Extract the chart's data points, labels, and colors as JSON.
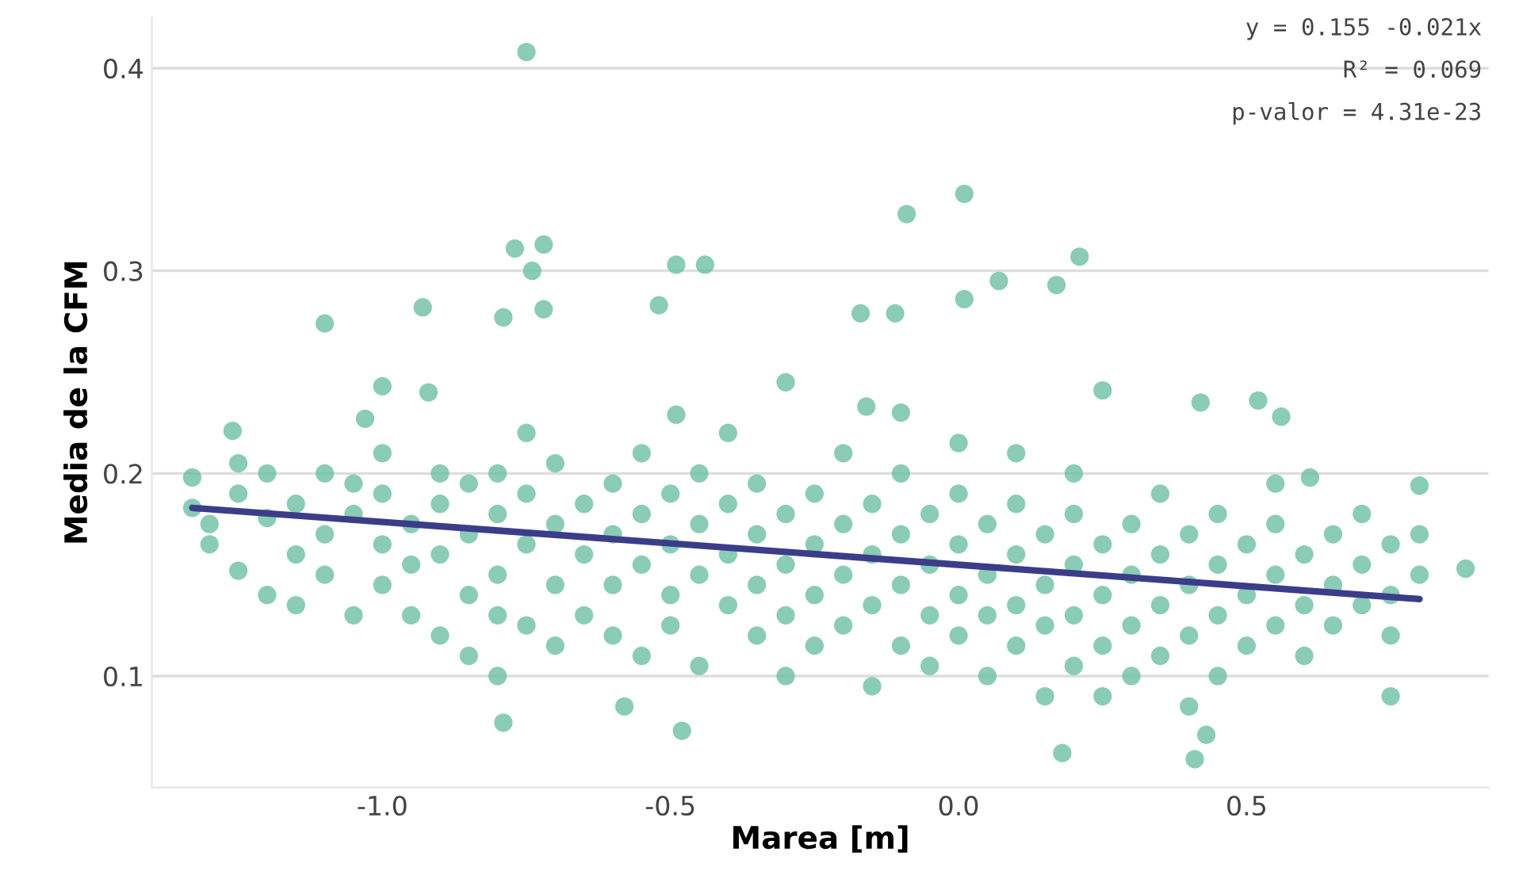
{
  "chart_data": {
    "type": "scatter",
    "xlabel": "Marea [m]",
    "ylabel": "Media de la CFM",
    "xticks": [
      {
        "value": -1.0,
        "label": "-1.0"
      },
      {
        "value": -0.5,
        "label": "-0.5"
      },
      {
        "value": 0.0,
        "label": "0.0"
      },
      {
        "value": 0.5,
        "label": "0.5"
      }
    ],
    "xlim": [
      -1.4,
      0.92
    ],
    "ylim": [
      0.045,
      0.425
    ],
    "yticks": [
      0.1,
      0.2,
      0.3,
      0.4
    ],
    "grid": "y",
    "annotations": [
      "y = 0.155 -0.021x",
      "R² = 0.069",
      "p-valor = 4.31e-23"
    ],
    "series": [
      {
        "color": "#6dbfa2",
        "marker": "circle",
        "x": [
          -0.75,
          -0.77,
          -0.72,
          -0.74,
          -0.72,
          -0.79,
          0.01,
          -0.09,
          0.21,
          0.07,
          0.17,
          0.01,
          -0.44,
          -0.49,
          -0.52,
          -0.93,
          -1.1,
          -1.33,
          -1.33,
          -0.79,
          -0.48,
          -0.58,
          0.18,
          0.41,
          0.75,
          0.43,
          -1.26,
          -1.0,
          -0.92,
          -1.03,
          -0.49,
          -0.3,
          -0.16,
          -0.17,
          -0.11,
          0.25,
          0.52,
          0.56,
          0.42,
          0.61,
          0.8,
          0.88,
          -1.3,
          -1.3,
          -1.25,
          -1.25,
          -1.25,
          -1.2,
          -1.2,
          -1.2,
          -1.15,
          -1.15,
          -1.15,
          -1.1,
          -1.1,
          -1.1,
          -1.05,
          -1.05,
          -1.05,
          -1.0,
          -1.0,
          -1.0,
          -1.0,
          -0.95,
          -0.95,
          -0.95,
          -0.9,
          -0.9,
          -0.9,
          -0.9,
          -0.85,
          -0.85,
          -0.85,
          -0.85,
          -0.8,
          -0.8,
          -0.8,
          -0.8,
          -0.8,
          -0.75,
          -0.75,
          -0.75,
          -0.75,
          -0.7,
          -0.7,
          -0.7,
          -0.7,
          -0.65,
          -0.65,
          -0.65,
          -0.6,
          -0.6,
          -0.6,
          -0.6,
          -0.55,
          -0.55,
          -0.55,
          -0.55,
          -0.5,
          -0.5,
          -0.5,
          -0.5,
          -0.45,
          -0.45,
          -0.45,
          -0.45,
          -0.4,
          -0.4,
          -0.4,
          -0.4,
          -0.35,
          -0.35,
          -0.35,
          -0.35,
          -0.3,
          -0.3,
          -0.3,
          -0.3,
          -0.25,
          -0.25,
          -0.25,
          -0.25,
          -0.2,
          -0.2,
          -0.2,
          -0.2,
          -0.15,
          -0.15,
          -0.15,
          -0.15,
          -0.1,
          -0.1,
          -0.1,
          -0.1,
          -0.1,
          -0.05,
          -0.05,
          -0.05,
          -0.05,
          0.0,
          0.0,
          0.0,
          0.0,
          0.0,
          0.05,
          0.05,
          0.05,
          0.05,
          0.1,
          0.1,
          0.1,
          0.1,
          0.1,
          0.15,
          0.15,
          0.15,
          0.15,
          0.2,
          0.2,
          0.2,
          0.2,
          0.2,
          0.25,
          0.25,
          0.25,
          0.25,
          0.3,
          0.3,
          0.3,
          0.3,
          0.35,
          0.35,
          0.35,
          0.35,
          0.4,
          0.4,
          0.4,
          0.4,
          0.45,
          0.45,
          0.45,
          0.45,
          0.5,
          0.5,
          0.5,
          0.55,
          0.55,
          0.55,
          0.55,
          0.6,
          0.6,
          0.6,
          0.65,
          0.65,
          0.65,
          0.7,
          0.7,
          0.7,
          0.75,
          0.75,
          0.75,
          0.8,
          0.8
        ],
        "values": [
          0.408,
          0.311,
          0.313,
          0.3,
          0.281,
          0.277,
          0.338,
          0.328,
          0.307,
          0.295,
          0.293,
          0.286,
          0.303,
          0.303,
          0.283,
          0.282,
          0.274,
          0.198,
          0.183,
          0.077,
          0.073,
          0.085,
          0.062,
          0.059,
          0.09,
          0.071,
          0.221,
          0.243,
          0.24,
          0.227,
          0.229,
          0.245,
          0.233,
          0.279,
          0.279,
          0.241,
          0.236,
          0.228,
          0.235,
          0.198,
          0.194,
          0.153,
          0.175,
          0.165,
          0.19,
          0.152,
          0.205,
          0.178,
          0.14,
          0.2,
          0.185,
          0.16,
          0.135,
          0.17,
          0.2,
          0.15,
          0.18,
          0.13,
          0.195,
          0.165,
          0.145,
          0.19,
          0.21,
          0.175,
          0.13,
          0.155,
          0.185,
          0.12,
          0.16,
          0.2,
          0.17,
          0.14,
          0.11,
          0.195,
          0.18,
          0.2,
          0.15,
          0.13,
          0.1,
          0.165,
          0.19,
          0.125,
          0.22,
          0.175,
          0.145,
          0.205,
          0.115,
          0.16,
          0.185,
          0.13,
          0.17,
          0.145,
          0.195,
          0.12,
          0.155,
          0.18,
          0.11,
          0.21,
          0.165,
          0.14,
          0.19,
          0.125,
          0.15,
          0.175,
          0.105,
          0.2,
          0.16,
          0.135,
          0.185,
          0.22,
          0.145,
          0.17,
          0.12,
          0.195,
          0.155,
          0.18,
          0.1,
          0.13,
          0.165,
          0.14,
          0.19,
          0.115,
          0.15,
          0.175,
          0.125,
          0.21,
          0.16,
          0.135,
          0.185,
          0.095,
          0.145,
          0.17,
          0.115,
          0.2,
          0.23,
          0.155,
          0.13,
          0.18,
          0.105,
          0.165,
          0.14,
          0.19,
          0.12,
          0.215,
          0.15,
          0.175,
          0.1,
          0.13,
          0.16,
          0.135,
          0.185,
          0.115,
          0.21,
          0.145,
          0.17,
          0.09,
          0.125,
          0.155,
          0.13,
          0.18,
          0.105,
          0.2,
          0.14,
          0.165,
          0.115,
          0.09,
          0.15,
          0.125,
          0.175,
          0.1,
          0.135,
          0.16,
          0.11,
          0.19,
          0.145,
          0.12,
          0.17,
          0.085,
          0.155,
          0.13,
          0.18,
          0.1,
          0.14,
          0.165,
          0.115,
          0.15,
          0.125,
          0.175,
          0.195,
          0.16,
          0.135,
          0.11,
          0.145,
          0.17,
          0.125,
          0.155,
          0.135,
          0.18,
          0.14,
          0.165,
          0.12,
          0.15,
          0.17
        ]
      },
      {
        "type": "line",
        "color": "#3b3d8a",
        "x": [
          -1.33,
          0.8
        ],
        "values": [
          0.183,
          0.138
        ]
      }
    ]
  }
}
